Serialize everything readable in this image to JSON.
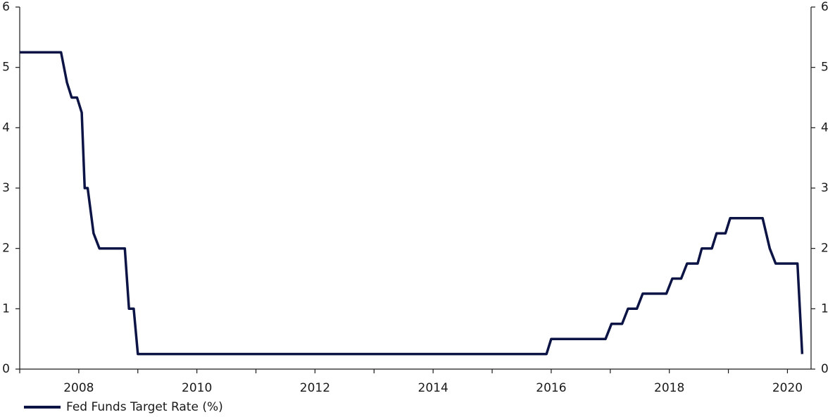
{
  "chart_data": {
    "type": "line",
    "xlim": [
      2007.0,
      2020.4
    ],
    "ylim": [
      0,
      6
    ],
    "x_ticks": [
      2008,
      2010,
      2012,
      2014,
      2016,
      2018,
      2020
    ],
    "y_ticks": [
      0,
      1,
      2,
      3,
      4,
      5,
      6
    ],
    "grid": false,
    "legend_position": "bottom-left",
    "series": [
      {
        "name": "Fed Funds Target Rate (%)",
        "color": "#0c1445",
        "x": [
          2007.0,
          2007.7,
          2007.8,
          2007.88,
          2007.97,
          2008.05,
          2008.1,
          2008.15,
          2008.25,
          2008.35,
          2008.78,
          2008.85,
          2008.93,
          2009.0,
          2015.92,
          2016.0,
          2016.92,
          2017.02,
          2017.2,
          2017.3,
          2017.45,
          2017.55,
          2017.95,
          2018.05,
          2018.2,
          2018.3,
          2018.48,
          2018.55,
          2018.72,
          2018.8,
          2018.95,
          2019.03,
          2019.58,
          2019.7,
          2019.8,
          2020.17,
          2020.25
        ],
        "y": [
          5.25,
          5.25,
          4.75,
          4.5,
          4.5,
          4.25,
          3.0,
          3.0,
          2.25,
          2.0,
          2.0,
          1.0,
          1.0,
          0.25,
          0.25,
          0.5,
          0.5,
          0.75,
          0.75,
          1.0,
          1.0,
          1.25,
          1.25,
          1.5,
          1.5,
          1.75,
          1.75,
          2.0,
          2.0,
          2.25,
          2.25,
          2.5,
          2.5,
          2.0,
          1.75,
          1.75,
          0.25
        ]
      }
    ]
  }
}
